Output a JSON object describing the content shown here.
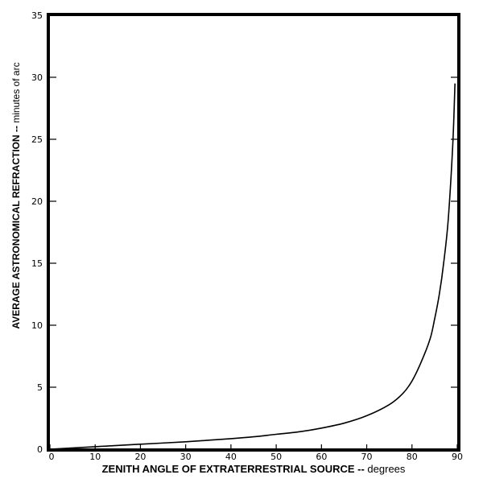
{
  "chart_data": {
    "type": "line",
    "title": "",
    "xlabel": "ZENITH ANGLE OF EXTRATERRESTRIAL SOURCE -- degrees",
    "ylabel": "AVERAGE ASTRONOMICAL REFRACTION -- minutes of arc",
    "xlim": [
      0,
      90
    ],
    "ylim": [
      0,
      35
    ],
    "x_ticks": [
      0,
      10,
      20,
      30,
      40,
      50,
      60,
      70,
      80,
      90
    ],
    "y_ticks": [
      0,
      5,
      10,
      15,
      20,
      25,
      30,
      35
    ],
    "grid": false,
    "legend": null,
    "series": [
      {
        "name": "Average astronomical refraction",
        "x": [
          0,
          10,
          20,
          30,
          40,
          45,
          50,
          55,
          60,
          65,
          70,
          75,
          78,
          80,
          82,
          84,
          85,
          86,
          87,
          88,
          89,
          89.5
        ],
        "values": [
          0,
          0.2,
          0.4,
          0.6,
          0.85,
          1.0,
          1.2,
          1.4,
          1.7,
          2.1,
          2.7,
          3.6,
          4.5,
          5.5,
          7.0,
          8.9,
          10.5,
          12.4,
          15.0,
          18.5,
          24.5,
          29.5
        ]
      }
    ]
  },
  "labels": {
    "x_axis_title_main": "ZENITH ANGLE OF EXTRATERRESTRIAL SOURCE -- ",
    "x_axis_title_unit": "degrees",
    "y_axis_title_main": "AVERAGE ASTRONOMICAL REFRACTION -- ",
    "y_axis_title_unit": "minutes of arc"
  }
}
